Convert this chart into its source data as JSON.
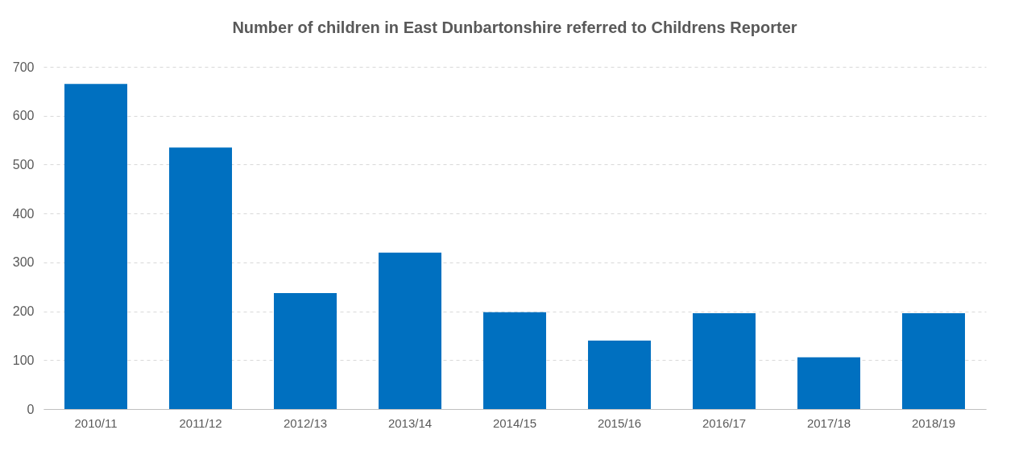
{
  "chart_data": {
    "type": "bar",
    "title": "Number of children in East Dunbartonshire referred to Childrens Reporter",
    "categories": [
      "2010/11",
      "2011/12",
      "2012/13",
      "2013/14",
      "2014/15",
      "2015/16",
      "2016/17",
      "2017/18",
      "2018/19"
    ],
    "values": [
      665,
      535,
      237,
      320,
      198,
      140,
      196,
      106,
      196
    ],
    "color": "#0070c0",
    "ylim": [
      0,
      700
    ],
    "yticks": [
      0,
      100,
      200,
      300,
      400,
      500,
      600,
      700
    ],
    "grid": "y"
  }
}
